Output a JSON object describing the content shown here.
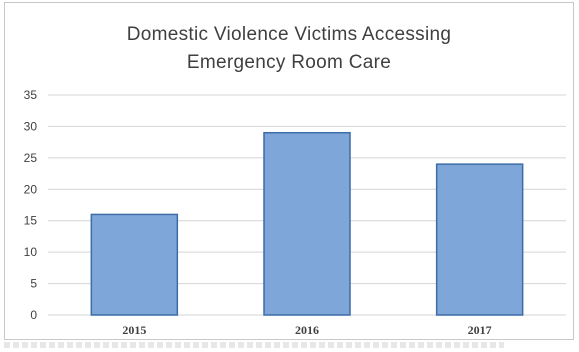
{
  "chart_data": {
    "type": "bar",
    "title_lines": [
      "Domestic Violence Victims Accessing",
      "Emergency Room Care"
    ],
    "categories": [
      "2015",
      "2016",
      "2017"
    ],
    "values": [
      16,
      29,
      24
    ],
    "ylim": [
      0,
      35
    ],
    "yticks": [
      "0",
      "5",
      "10",
      "15",
      "20",
      "25",
      "30",
      "35"
    ],
    "grid": true,
    "legend": "none",
    "colors": {
      "bar_fill": "#7ea6d8",
      "bar_stroke": "#3e6ca8",
      "grid": "#d4d4d4",
      "text": "#404040"
    }
  }
}
